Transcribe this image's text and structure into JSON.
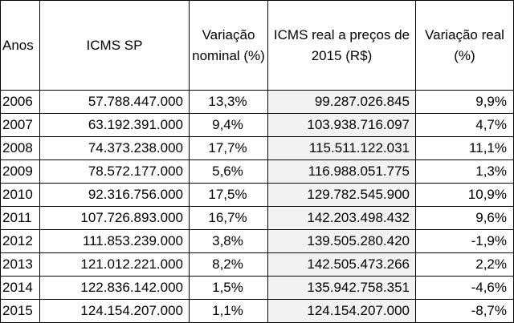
{
  "table": {
    "headers": {
      "anos": "Anos",
      "icms_sp": "ICMS SP",
      "var_nominal": "Variação nominal (%)",
      "icms_real": "ICMS  real  a preços de 2015 (R$)",
      "var_real": "Variação real (%)"
    },
    "rows": [
      {
        "ano": "2006",
        "icms": "57.788.447.000",
        "var_nominal": "13,3%",
        "icms_real": "99.287.026.845",
        "var_real": "9,9%"
      },
      {
        "ano": "2007",
        "icms": "63.192.391.000",
        "var_nominal": "9,4%",
        "icms_real": "103.938.716.097",
        "var_real": "4,7%"
      },
      {
        "ano": "2008",
        "icms": "74.373.238.000",
        "var_nominal": "17,7%",
        "icms_real": "115.511.122.031",
        "var_real": "11,1%"
      },
      {
        "ano": "2009",
        "icms": "78.572.177.000",
        "var_nominal": "5,6%",
        "icms_real": "116.988.051.775",
        "var_real": "1,3%"
      },
      {
        "ano": "2010",
        "icms": "92.316.756.000",
        "var_nominal": "17,5%",
        "icms_real": "129.782.545.900",
        "var_real": "10,9%"
      },
      {
        "ano": "2011",
        "icms": "107.726.893.000",
        "var_nominal": "16,7%",
        "icms_real": "142.203.498.432",
        "var_real": "9,6%"
      },
      {
        "ano": "2012",
        "icms": "111.853.239.000",
        "var_nominal": "3,8%",
        "icms_real": "139.505.280.420",
        "var_real": "-1,9%"
      },
      {
        "ano": "2013",
        "icms": "121.012.221.000",
        "var_nominal": "8,2%",
        "icms_real": "142.505.473.266",
        "var_real": "2,2%"
      },
      {
        "ano": "2014",
        "icms": "122.836.142.000",
        "var_nominal": "1,5%",
        "icms_real": "135.942.758.351",
        "var_real": "-4,6%"
      },
      {
        "ano": "2015",
        "icms": "124.154.207.000",
        "var_nominal": "1,1%",
        "icms_real": "124.154.207.000",
        "var_real": "-8,7%"
      }
    ]
  }
}
